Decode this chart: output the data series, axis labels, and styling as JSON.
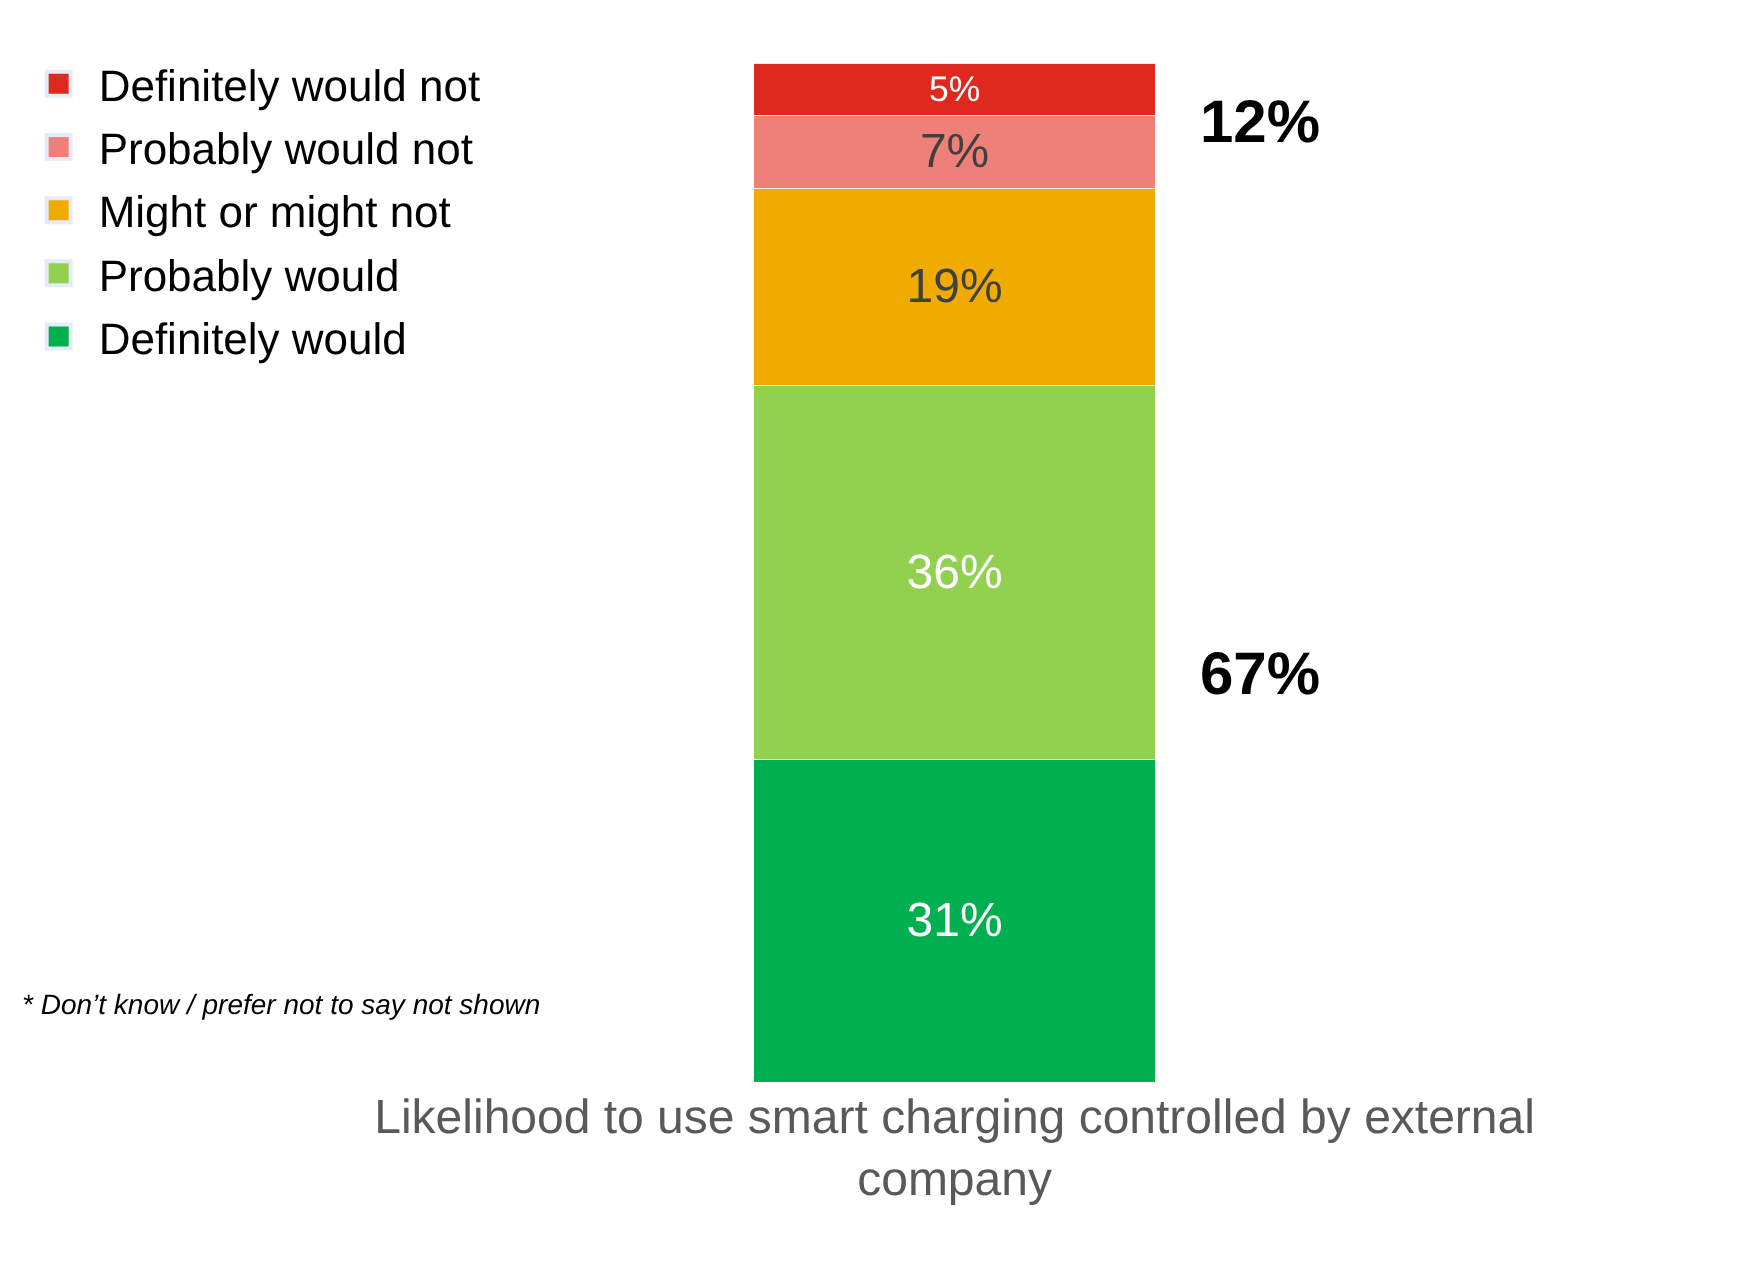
{
  "chart_data": {
    "type": "bar",
    "stacked": true,
    "categories": [
      null
    ],
    "xlabel": "Likelihood to use smart charging controlled by external company",
    "series": [
      {
        "name": "Definitely would",
        "color": "#00b050",
        "values": [
          31
        ],
        "value_labels": [
          "31%"
        ]
      },
      {
        "name": "Probably would",
        "color": "#92d050",
        "values": [
          36
        ],
        "value_labels": [
          "36%"
        ]
      },
      {
        "name": "Might or might not",
        "color": "#f0ab00",
        "values": [
          19
        ],
        "value_labels": [
          "19%"
        ]
      },
      {
        "name": "Probably would not",
        "color": "#ee7f79",
        "values": [
          7
        ],
        "value_labels": [
          "7%"
        ]
      },
      {
        "name": "Definitely would not",
        "color": "#e0291e",
        "values": [
          5
        ],
        "value_labels": [
          "5%"
        ]
      }
    ],
    "legend": "left",
    "tick_labels": false,
    "annotations": [
      "12%",
      "67%",
      "* Don’t know / prefer not to say not shown"
    ]
  }
}
